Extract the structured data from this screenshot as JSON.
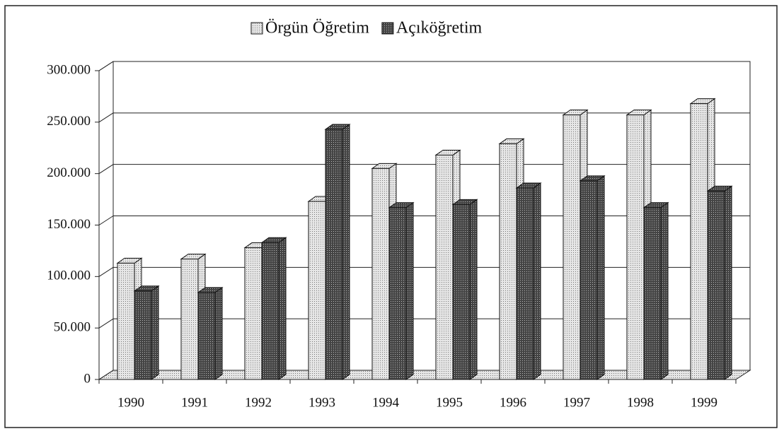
{
  "chart_data": {
    "type": "bar3d",
    "categories": [
      "1990",
      "1991",
      "1992",
      "1993",
      "1994",
      "1995",
      "1996",
      "1997",
      "1998",
      "1999"
    ],
    "series": [
      {
        "name": "Örgün Öğretim",
        "color": "#cfcfcf",
        "values": [
          113000,
          117000,
          128000,
          173000,
          205000,
          218000,
          229000,
          257000,
          257000,
          268000
        ]
      },
      {
        "name": "Açıköğretim",
        "color": "#555555",
        "values": [
          86000,
          84500,
          133000,
          243000,
          167000,
          170000,
          186000,
          193000,
          167000,
          183000
        ]
      }
    ],
    "ylim": [
      0,
      300000
    ],
    "yticks": [
      0,
      {
        "value": 50000,
        "label": "50.000"
      },
      {
        "value": 100000,
        "label": "100.000"
      },
      {
        "value": 150000,
        "label": "150.000"
      },
      {
        "value": 200000,
        "label": "200.000"
      },
      {
        "value": 250000,
        "label": "250.000"
      },
      {
        "value": 300000,
        "label": "300.000"
      }
    ],
    "grid": true
  }
}
